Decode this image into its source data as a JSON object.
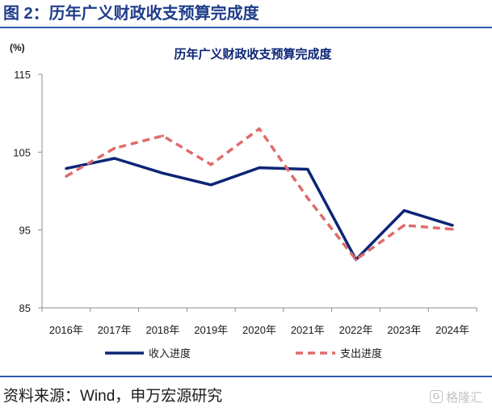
{
  "figure": {
    "label": "图 2：历年广义财政收支预算完成度"
  },
  "source": "资料来源：Wind，申万宏源研究",
  "watermark": {
    "text": "格隆汇",
    "logo_letter": "G",
    "icon": "glh-logo-icon"
  },
  "colors": {
    "brand_blue": "#1f3d8a",
    "rule_blue": "#2f5aae",
    "income": "#0c2576",
    "expenditure": "#e06b6b",
    "axis": "#8c8c8c"
  },
  "chart_data": {
    "type": "line",
    "title": "历年广义财政收支预算完成度",
    "ylabel": "(%)",
    "xlabel": "",
    "categories": [
      "2016年",
      "2017年",
      "2018年",
      "2019年",
      "2020年",
      "2021年",
      "2022年",
      "2023年",
      "2024年"
    ],
    "ylim": [
      85,
      115
    ],
    "yticks": [
      85,
      95,
      105,
      115
    ],
    "grid": false,
    "legend": "bottom",
    "series": [
      {
        "name": "收入进度",
        "values": [
          102.9,
          104.2,
          102.3,
          100.8,
          103.0,
          102.8,
          91.2,
          97.5,
          95.6
        ],
        "color": "#0c2576",
        "line_style": "solid"
      },
      {
        "name": "支出进度",
        "values": [
          101.9,
          105.5,
          107.1,
          103.4,
          108.0,
          99.1,
          91.2,
          95.6,
          95.1
        ],
        "color": "#e06b6b",
        "line_style": "dashed"
      }
    ]
  }
}
